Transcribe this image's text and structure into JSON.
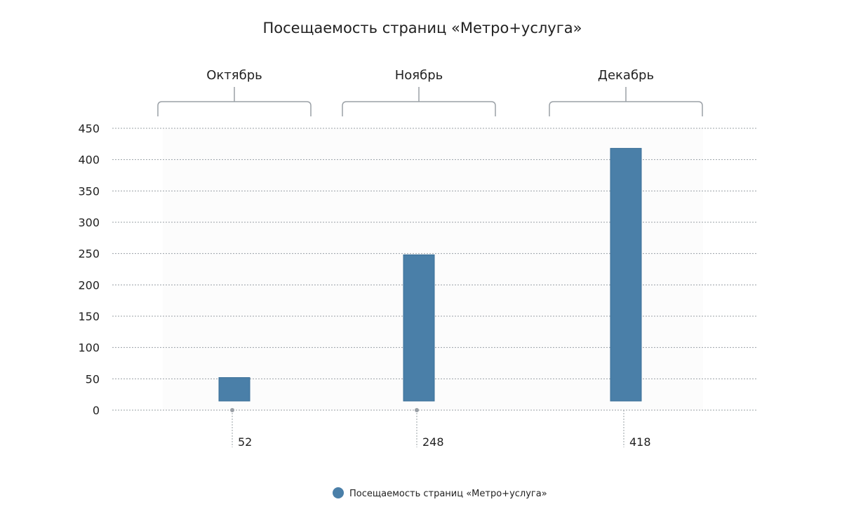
{
  "chart_data": {
    "type": "bar",
    "title": "Посещаемость страниц «Метро+услуга»",
    "categories": [
      "Октябрь",
      "Ноябрь",
      "Декабрь"
    ],
    "series": [
      {
        "name": "Посещаемость страниц «Метро+услуга»",
        "values": [
          52,
          248,
          418
        ],
        "color": "#4a7fa8"
      }
    ],
    "data_labels": [
      "52",
      "248",
      "418"
    ],
    "yticks": [
      "0",
      "50",
      "100",
      "150",
      "200",
      "250",
      "300",
      "350",
      "400",
      "450"
    ],
    "ylim": [
      0,
      450
    ],
    "grid": true,
    "legend_position": "bottom"
  }
}
